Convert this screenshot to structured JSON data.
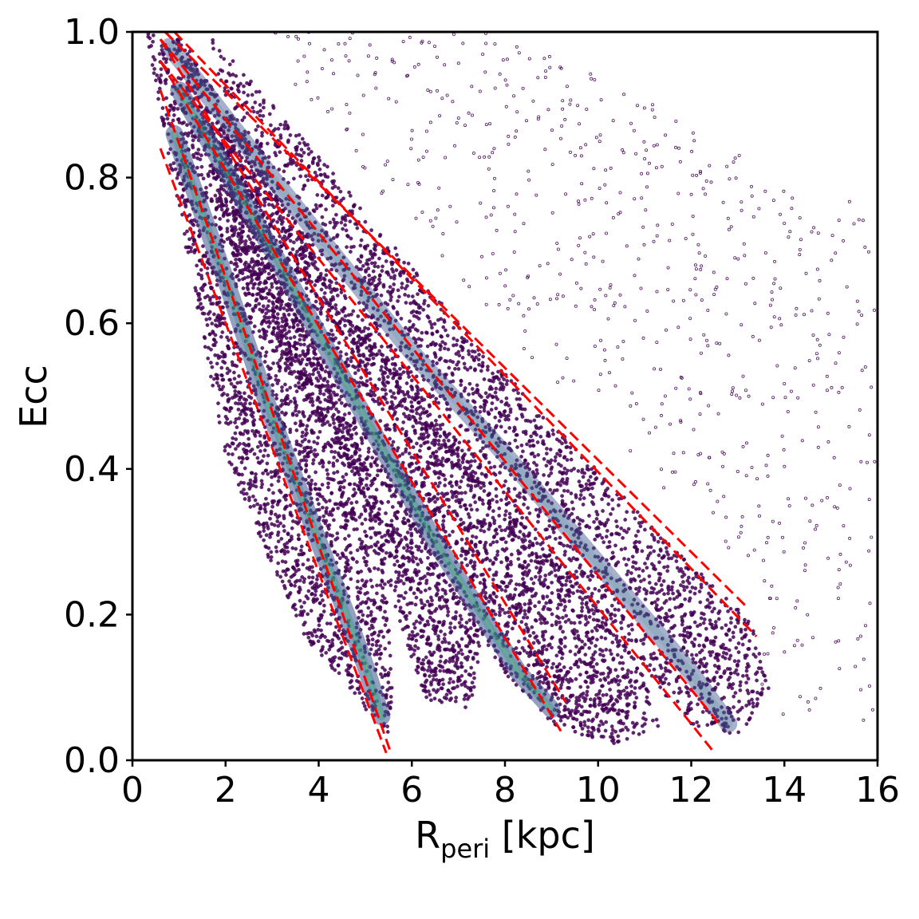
{
  "chart_data": {
    "type": "scatter",
    "title": "",
    "xlabel": "R",
    "xlabel_subscript": "peri",
    "xlabel_unit": " [kpc]",
    "ylabel": "Ecc",
    "xlim": [
      0,
      16
    ],
    "ylim": [
      0,
      1.0
    ],
    "xticks": [
      0,
      2,
      4,
      6,
      8,
      10,
      12,
      14,
      16
    ],
    "yticks": [
      0.0,
      0.2,
      0.4,
      0.6,
      0.8,
      1.0
    ],
    "xtick_labels": [
      "0",
      "2",
      "4",
      "6",
      "8",
      "10",
      "12",
      "14",
      "16"
    ],
    "ytick_labels": [
      "0.0",
      "0.2",
      "0.4",
      "0.6",
      "0.8",
      "1.0"
    ],
    "grid": false,
    "legend": "none",
    "colormap": "viridis",
    "colors": {
      "density_low": "#440154",
      "density_mid": "#3b528b",
      "density_high": "#21918c",
      "density_peak": "#5ec962",
      "guide_lines": "#ff0000"
    },
    "density_ridges": [
      {
        "x": [
          0.9,
          2.0,
          3.0,
          4.0,
          4.6,
          5.0,
          5.35
        ],
        "y": [
          0.86,
          0.66,
          0.47,
          0.3,
          0.2,
          0.13,
          0.06
        ]
      },
      {
        "x": [
          1.0,
          3.0,
          5.0,
          6.5,
          7.5,
          8.3,
          9.0
        ],
        "y": [
          0.92,
          0.7,
          0.47,
          0.3,
          0.2,
          0.12,
          0.07
        ]
      },
      {
        "x": [
          0.8,
          3.0,
          6.0,
          8.0,
          10.0,
          12.0,
          12.8
        ],
        "y": [
          0.98,
          0.8,
          0.56,
          0.42,
          0.27,
          0.12,
          0.05
        ]
      }
    ],
    "scatter_regions": [
      {
        "name": "inner-tongue",
        "polygon": [
          [
            0.3,
            1.0
          ],
          [
            1.2,
            0.98
          ],
          [
            2.5,
            0.8
          ],
          [
            4.2,
            0.52
          ],
          [
            5.3,
            0.36
          ],
          [
            5.6,
            0.1
          ],
          [
            5.5,
            0.03
          ],
          [
            4.6,
            0.1
          ],
          [
            3.7,
            0.17
          ],
          [
            2.9,
            0.28
          ],
          [
            2.0,
            0.42
          ],
          [
            1.1,
            0.72
          ],
          [
            0.5,
            0.92
          ]
        ],
        "count": 2600
      },
      {
        "name": "middle-tongue",
        "polygon": [
          [
            0.9,
            1.0
          ],
          [
            2.5,
            0.85
          ],
          [
            4.5,
            0.63
          ],
          [
            6.5,
            0.47
          ],
          [
            8.0,
            0.34
          ],
          [
            9.6,
            0.24
          ],
          [
            10.8,
            0.14
          ],
          [
            11.4,
            0.05
          ],
          [
            10.3,
            0.02
          ],
          [
            9.0,
            0.05
          ],
          [
            8.0,
            0.12
          ],
          [
            7.5,
            0.17
          ],
          [
            7.4,
            0.12
          ],
          [
            7.3,
            0.07
          ],
          [
            6.3,
            0.08
          ],
          [
            5.6,
            0.22
          ],
          [
            4.8,
            0.38
          ],
          [
            3.3,
            0.55
          ],
          [
            2.0,
            0.72
          ]
        ],
        "count": 3400
      },
      {
        "name": "outer-tongue",
        "polygon": [
          [
            1.6,
            1.0
          ],
          [
            4.0,
            0.83
          ],
          [
            7.0,
            0.6
          ],
          [
            9.5,
            0.43
          ],
          [
            11.5,
            0.3
          ],
          [
            13.3,
            0.19
          ],
          [
            13.7,
            0.1
          ],
          [
            13.0,
            0.03
          ],
          [
            12.0,
            0.05
          ],
          [
            11.0,
            0.12
          ],
          [
            9.5,
            0.22
          ],
          [
            8.0,
            0.32
          ],
          [
            6.3,
            0.45
          ],
          [
            4.5,
            0.58
          ],
          [
            2.6,
            0.76
          ]
        ],
        "count": 2600
      },
      {
        "name": "diffuse-halo",
        "polygon": [
          [
            2.5,
            1.0
          ],
          [
            8.0,
            1.0
          ],
          [
            16.0,
            0.75
          ],
          [
            16.0,
            0.05
          ],
          [
            13.0,
            0.05
          ],
          [
            13.8,
            0.2
          ],
          [
            11.0,
            0.4
          ],
          [
            7.0,
            0.65
          ]
        ],
        "count": 650
      }
    ],
    "dashed_lines": [
      {
        "x": [
          0.6,
          5.45
        ],
        "y": [
          0.84,
          0.01
        ]
      },
      {
        "x": [
          0.6,
          5.55
        ],
        "y": [
          0.92,
          0.01
        ]
      },
      {
        "x": [
          0.6,
          9.2
        ],
        "y": [
          0.96,
          0.04
        ]
      },
      {
        "x": [
          0.6,
          9.3
        ],
        "y": [
          0.99,
          0.08
        ]
      },
      {
        "x": [
          0.6,
          12.5
        ],
        "y": [
          0.96,
          0.01
        ]
      },
      {
        "x": [
          0.6,
          12.6
        ],
        "y": [
          0.99,
          0.05
        ]
      },
      {
        "x": [
          0.7,
          13.2
        ],
        "y": [
          1.0,
          0.21
        ]
      },
      {
        "x": [
          0.9,
          13.4
        ],
        "y": [
          1.0,
          0.17
        ]
      }
    ]
  }
}
